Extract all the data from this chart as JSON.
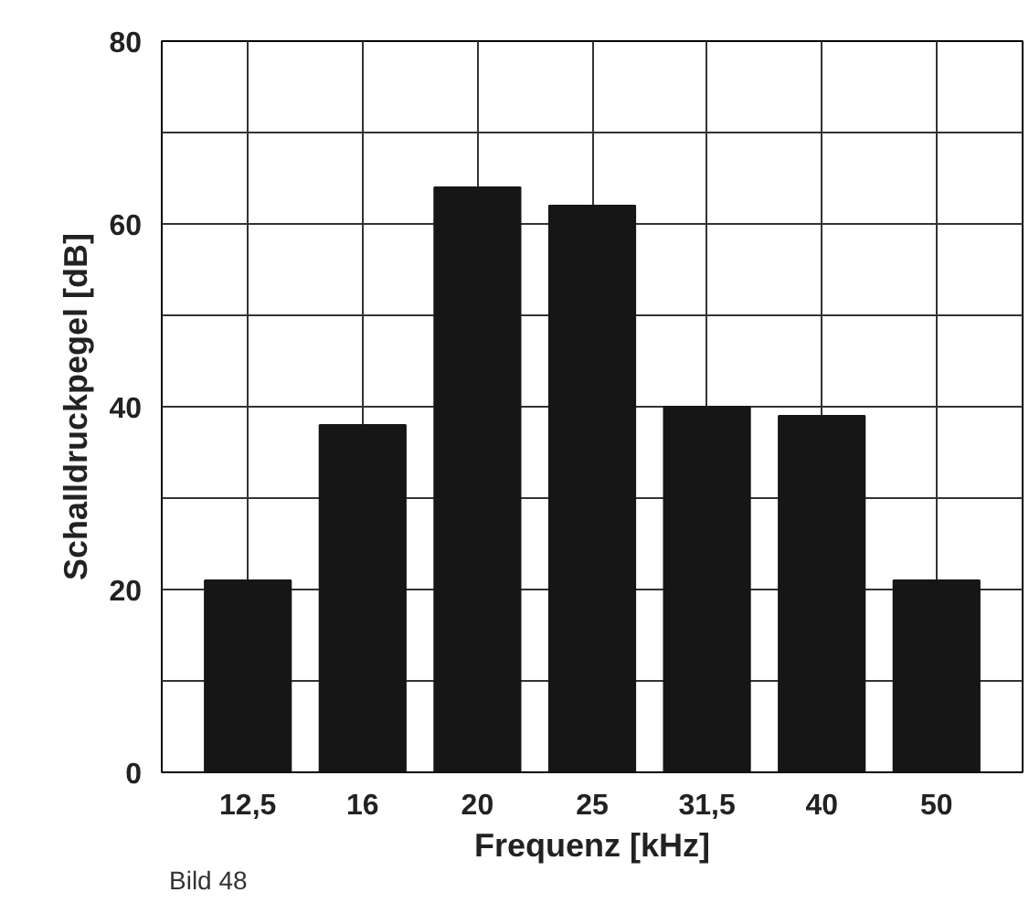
{
  "chart_data": {
    "type": "bar",
    "xlabel": "Frequenz [kHz]",
    "ylabel": "Schalldruckpegel [dB]",
    "categories": [
      "12,5",
      "16",
      "20",
      "25",
      "31,5",
      "40",
      "50"
    ],
    "values": [
      21,
      38,
      64,
      62,
      40,
      39,
      21
    ],
    "color": "#161616",
    "ylim": [
      0,
      80
    ],
    "yticks": [
      0,
      {
        "value": 10,
        "label": null
      },
      20,
      {
        "value": 30,
        "label": null
      },
      40,
      {
        "value": 50,
        "label": null
      },
      60,
      {
        "value": 70,
        "label": null
      },
      80
    ],
    "grid": true,
    "annotations": [
      "Bild 48"
    ]
  }
}
